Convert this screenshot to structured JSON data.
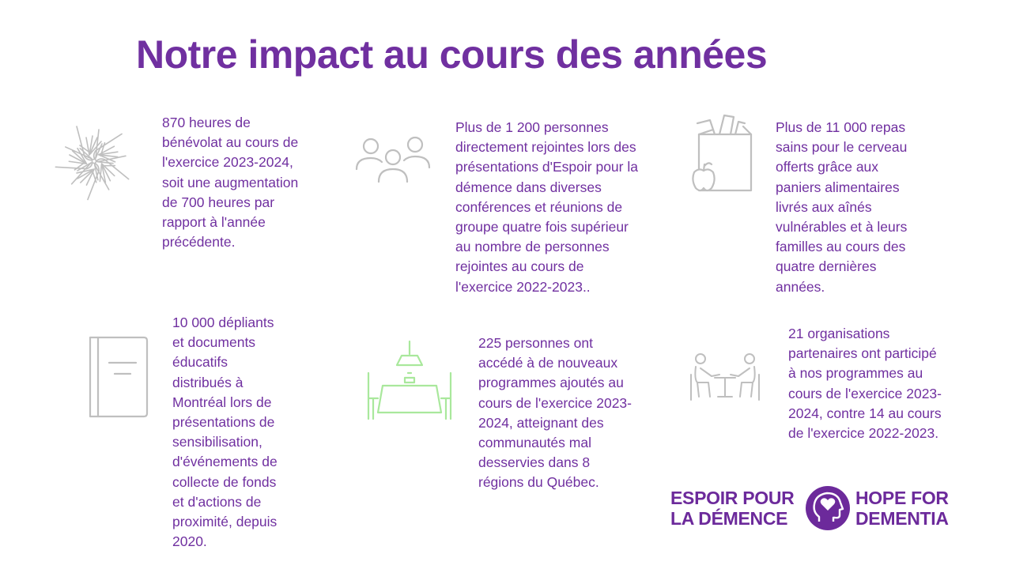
{
  "title": "Notre impact au cours des années",
  "colors": {
    "accent": "#7030a0",
    "icon_gray": "#bfbfbf",
    "icon_green": "#a9e89c"
  },
  "stats": [
    {
      "icon": "hands-together-icon",
      "lines": [
        "870 heures de",
        "bénévolat au cours de",
        "l'exercice 2023-2024,",
        "soit une augmentation",
        "de 700 heures par",
        "rapport à l'année",
        "précédente."
      ]
    },
    {
      "icon": "people-group-icon",
      "lines": [
        "Plus de 1 200 personnes",
        "directement rejointes lors des",
        "présentations d'Espoir pour la",
        "démence dans diverses",
        "conférences et réunions de",
        "groupe quatre fois supérieur",
        "au nombre de personnes",
        "rejointes au cours de",
        "l'exercice 2022-2023.."
      ]
    },
    {
      "icon": "grocery-bag-icon",
      "lines": [
        "Plus de 11 000 repas",
        "sains pour le cerveau",
        "offerts grâce aux",
        "paniers alimentaires",
        "livrés aux aînés",
        "vulnérables et à leurs",
        "familles au cours des",
        "quatre dernières",
        "années."
      ]
    },
    {
      "icon": "book-icon",
      "lines": [
        "10 000 dépliants",
        "et documents",
        "éducatifs",
        "distribués à",
        "Montréal lors de",
        "présentations de",
        "sensibilisation,",
        "d'événements de",
        "collecte de fonds",
        "et d'actions de",
        "proximité, depuis",
        "2020."
      ]
    },
    {
      "icon": "dining-table-icon",
      "lines": [
        "225 personnes ont",
        "accédé à de nouveaux",
        "programmes ajoutés au",
        "cours de l'exercice 2023-",
        "2024, atteignant des",
        "communautés mal",
        "desservies dans 8",
        "régions du Québec."
      ]
    },
    {
      "icon": "meeting-table-icon",
      "lines": [
        "21 organisations",
        "partenaires ont participé",
        "à nos programmes au",
        "cours de l'exercice 2023-",
        "2024, contre 14 au cours",
        "de l'exercice 2022-2023."
      ]
    }
  ],
  "logo": {
    "left_line1": "ESPOIR POUR",
    "left_line2": "LA DÉMENCE",
    "right_line1": "HOPE FOR",
    "right_line2": "DEMENTIA",
    "icon": "head-heart-icon"
  }
}
